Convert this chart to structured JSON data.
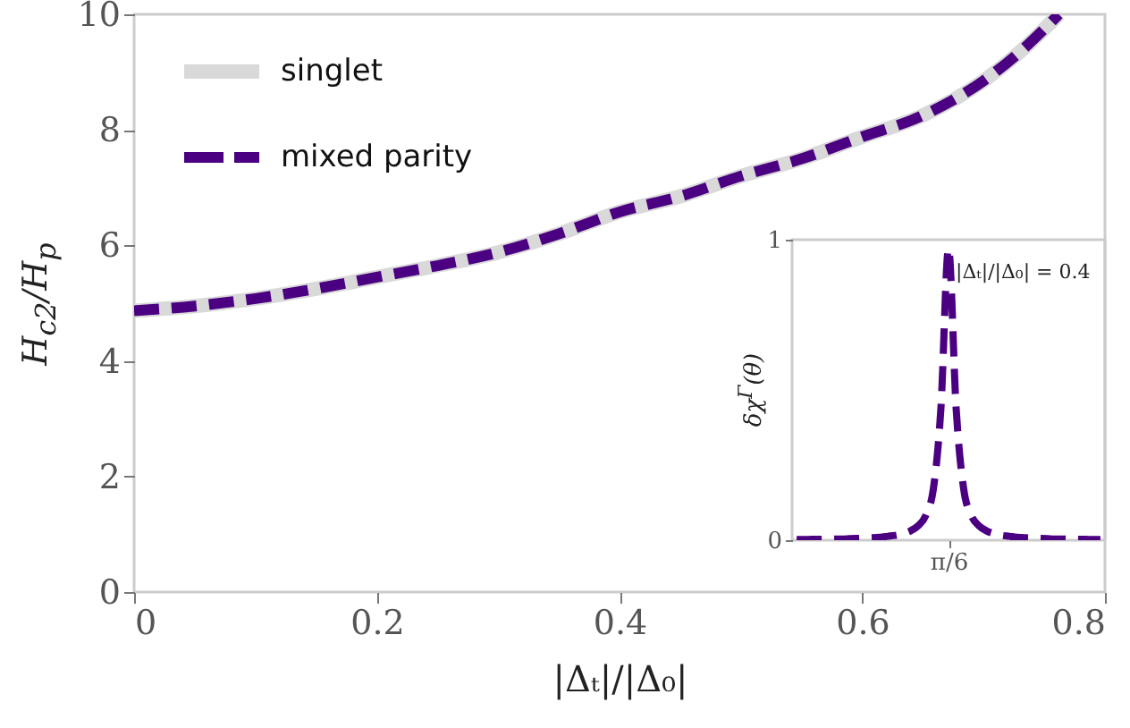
{
  "chart_data": [
    {
      "type": "line",
      "xlabel": "|Δₜ|/|Δ₀|",
      "ylabel": "H$_{c2}$/H$_{p}$",
      "x": [
        0,
        0.05,
        0.1,
        0.15,
        0.2,
        0.25,
        0.3,
        0.35,
        0.4,
        0.45,
        0.5,
        0.55,
        0.6,
        0.65,
        0.7,
        0.73,
        0.762
      ],
      "series": [
        {
          "name": "singlet",
          "color": "#d9d9d9",
          "line_style": "solid",
          "values": [
            4.87,
            4.95,
            5.08,
            5.25,
            5.45,
            5.65,
            5.88,
            6.2,
            6.58,
            6.85,
            7.2,
            7.5,
            7.88,
            8.25,
            8.85,
            9.35,
            10
          ]
        },
        {
          "name": "mixed parity",
          "color": "#4b0082",
          "line_style": "dashed",
          "values": [
            4.87,
            4.95,
            5.08,
            5.25,
            5.45,
            5.65,
            5.88,
            6.2,
            6.58,
            6.85,
            7.2,
            7.5,
            7.88,
            8.25,
            8.85,
            9.35,
            10
          ]
        }
      ],
      "xlim": [
        0,
        0.8
      ],
      "xticks": [
        0,
        0.2,
        0.4,
        0.6,
        0.8
      ],
      "ylim": [
        0,
        10
      ],
      "yticks": [
        0,
        2,
        4,
        6,
        8,
        10
      ],
      "legend": "top left",
      "grid": false
    },
    {
      "type": "line",
      "ylabel": "δχ$^{Γ}$(θ)",
      "annotations": [
        "|Δₜ|/|Δ₀| = 0.4"
      ],
      "categories": [
        null,
        null,
        null,
        null,
        null,
        null,
        null,
        null,
        null,
        null,
        null,
        null,
        null,
        null,
        null,
        null,
        null,
        null,
        null,
        null,
        "π/6",
        null,
        null,
        null,
        null,
        null,
        null,
        null,
        null,
        null,
        null,
        null,
        null,
        null,
        null,
        null,
        null,
        null,
        null,
        null,
        null
      ],
      "series": [
        {
          "color": "#4b0082",
          "line_style": "dashed",
          "values": [
            0.002,
            0.002,
            0.003,
            0.003,
            0.003,
            0.004,
            0.004,
            0.005,
            0.006,
            0.007,
            0.008,
            0.01,
            0.013,
            0.016,
            0.022,
            0.031,
            0.048,
            0.082,
            0.17,
            0.44,
            0.97,
            0.44,
            0.17,
            0.082,
            0.048,
            0.031,
            0.022,
            0.016,
            0.013,
            0.01,
            0.008,
            0.007,
            0.006,
            0.005,
            0.004,
            0.004,
            0.003,
            0.003,
            0.003,
            0.002,
            0.002
          ]
        }
      ],
      "ylim": [
        0,
        1
      ],
      "yticks": [
        0,
        1
      ],
      "grid": false
    }
  ]
}
